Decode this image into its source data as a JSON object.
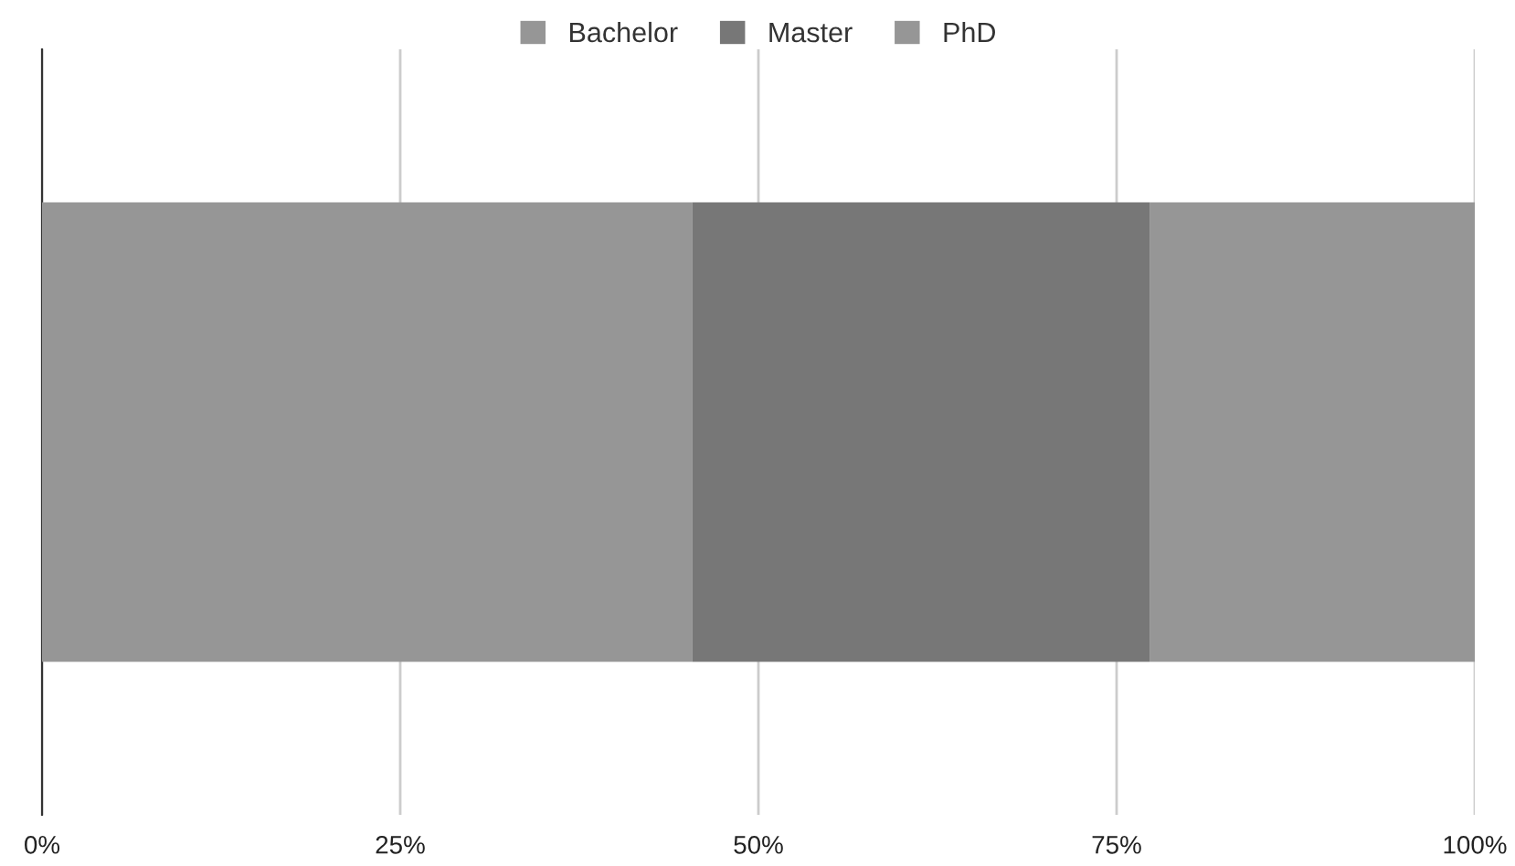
{
  "chart_data": {
    "type": "bar",
    "orientation": "horizontal",
    "stacked": true,
    "categories": [
      null
    ],
    "series": [
      {
        "name": "Bachelor",
        "color": "#969696",
        "values": [
          45.4
        ]
      },
      {
        "name": "Master",
        "color": "#777777",
        "values": [
          31.9
        ]
      },
      {
        "name": "PhD",
        "color": "#969696",
        "values": [
          22.7
        ]
      }
    ],
    "xlim": [
      0,
      100
    ],
    "xticks": [
      {
        "value": 0,
        "label": "0%"
      },
      {
        "value": 25,
        "label": "25%"
      },
      {
        "value": 50,
        "label": "50%"
      },
      {
        "value": 75,
        "label": "75%"
      },
      {
        "value": 100,
        "label": "100%"
      }
    ],
    "grid": "x",
    "legend": "top"
  }
}
